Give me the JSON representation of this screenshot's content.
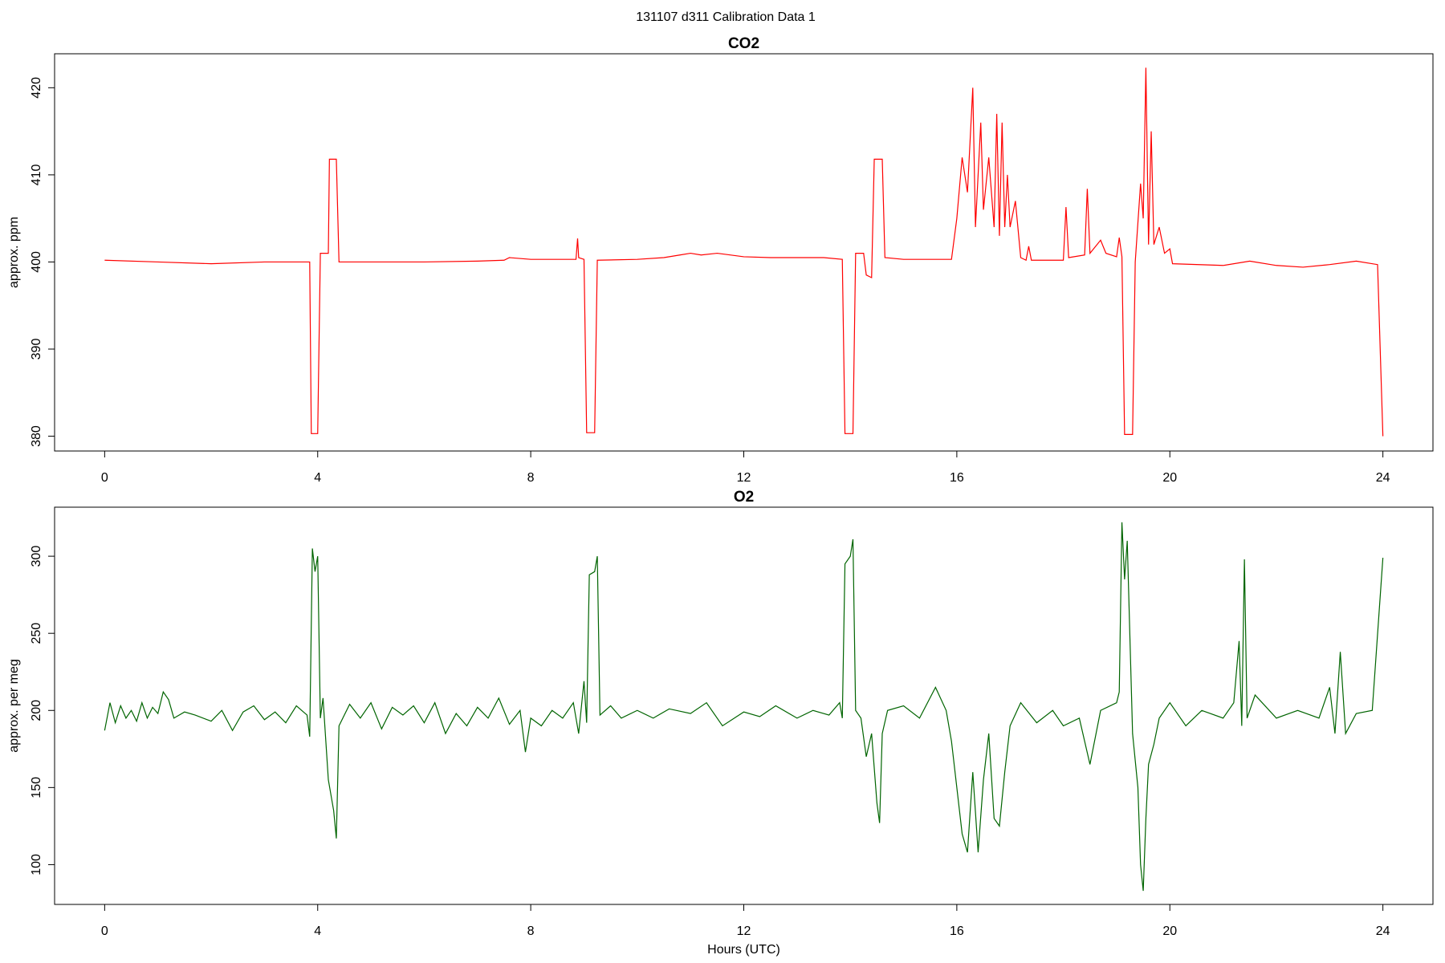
{
  "title": "131107   d311   Calibration Data 1",
  "chart_data": [
    {
      "type": "line",
      "title": "CO2",
      "ylabel": "approx. ppm",
      "color": "#ff0000",
      "xlim": [
        -0.94,
        24.94
      ],
      "ylim": [
        378.3,
        423.9
      ],
      "xticks": [
        0,
        4,
        8,
        12,
        16,
        20,
        24
      ],
      "yticks": [
        380,
        390,
        400,
        410,
        420
      ],
      "x": [
        0,
        1,
        2,
        3,
        3.85,
        3.88,
        4.0,
        4.05,
        4.2,
        4.22,
        4.35,
        4.4,
        5,
        6,
        7,
        7.5,
        7.6,
        8,
        8.85,
        8.88,
        8.9,
        9.0,
        9.05,
        9.2,
        9.25,
        10,
        10.5,
        10.8,
        11,
        11.2,
        11.5,
        12,
        12.5,
        13,
        13.5,
        13.85,
        13.9,
        14.05,
        14.1,
        14.25,
        14.3,
        14.4,
        14.45,
        14.6,
        14.65,
        15,
        15.5,
        15.9,
        16.0,
        16.1,
        16.2,
        16.3,
        16.35,
        16.45,
        16.5,
        16.6,
        16.7,
        16.75,
        16.8,
        16.85,
        16.9,
        16.95,
        17.0,
        17.1,
        17.2,
        17.3,
        17.35,
        17.4,
        18,
        18.05,
        18.1,
        18.4,
        18.45,
        18.5,
        18.7,
        18.8,
        19.0,
        19.05,
        19.1,
        19.15,
        19.3,
        19.35,
        19.45,
        19.5,
        19.55,
        19.6,
        19.65,
        19.7,
        19.8,
        19.9,
        20,
        20.05,
        21,
        21.5,
        22,
        22.5,
        23,
        23.5,
        23.9,
        24
      ],
      "values": [
        400.2,
        400.0,
        399.8,
        400.0,
        400.0,
        380.3,
        380.3,
        401,
        401,
        411.8,
        411.8,
        400,
        400,
        400,
        400.1,
        400.2,
        400.5,
        400.3,
        400.3,
        402.7,
        400.5,
        400.3,
        380.4,
        380.4,
        400.2,
        400.3,
        400.5,
        400.8,
        401,
        400.8,
        401,
        400.6,
        400.5,
        400.5,
        400.5,
        400.3,
        380.3,
        380.3,
        401,
        401,
        398.5,
        398.2,
        411.8,
        411.8,
        400.5,
        400.3,
        400.3,
        400.3,
        405,
        412,
        408,
        420,
        404,
        416,
        406,
        412,
        404,
        417,
        403,
        416,
        404,
        410,
        404,
        407,
        400.5,
        400.2,
        401.8,
        400.2,
        400.2,
        406.3,
        400.5,
        400.8,
        408.4,
        401,
        402.5,
        401,
        400.6,
        402.8,
        400.6,
        380.2,
        380.2,
        400,
        409,
        405,
        422.3,
        402,
        415,
        402,
        404,
        401,
        401.5,
        399.8,
        399.6,
        400.1,
        399.6,
        399.4,
        399.7,
        400.1,
        399.7,
        380
      ]
    },
    {
      "type": "line",
      "title": "O2",
      "ylabel": "approx. per meg",
      "xlabel": "Hours (UTC)",
      "color": "#006400",
      "xlim": [
        -0.94,
        24.94
      ],
      "ylim": [
        74.2,
        331.8
      ],
      "xticks": [
        0,
        4,
        8,
        12,
        16,
        20,
        24
      ],
      "yticks": [
        100,
        150,
        200,
        250,
        300
      ],
      "x": [
        0,
        0.1,
        0.2,
        0.3,
        0.4,
        0.5,
        0.6,
        0.7,
        0.8,
        0.9,
        1.0,
        1.1,
        1.2,
        1.3,
        1.5,
        1.7,
        2.0,
        2.2,
        2.4,
        2.6,
        2.8,
        3.0,
        3.2,
        3.4,
        3.6,
        3.8,
        3.85,
        3.9,
        3.95,
        4.0,
        4.05,
        4.1,
        4.2,
        4.3,
        4.35,
        4.4,
        4.6,
        4.8,
        5.0,
        5.2,
        5.4,
        5.6,
        5.8,
        6.0,
        6.2,
        6.4,
        6.6,
        6.8,
        7.0,
        7.2,
        7.4,
        7.6,
        7.8,
        7.9,
        8.0,
        8.2,
        8.4,
        8.6,
        8.8,
        8.9,
        9.0,
        9.05,
        9.1,
        9.2,
        9.25,
        9.3,
        9.5,
        9.7,
        10,
        10.3,
        10.6,
        11,
        11.3,
        11.6,
        12,
        12.3,
        12.6,
        13,
        13.3,
        13.6,
        13.8,
        13.85,
        13.9,
        14.0,
        14.05,
        14.1,
        14.2,
        14.3,
        14.4,
        14.5,
        14.55,
        14.6,
        14.7,
        15.0,
        15.3,
        15.6,
        15.8,
        15.9,
        16.0,
        16.1,
        16.2,
        16.3,
        16.4,
        16.5,
        16.6,
        16.7,
        16.8,
        16.9,
        17.0,
        17.2,
        17.5,
        17.8,
        18.0,
        18.3,
        18.5,
        18.7,
        19.0,
        19.05,
        19.1,
        19.15,
        19.2,
        19.3,
        19.4,
        19.45,
        19.5,
        19.55,
        19.6,
        19.7,
        19.8,
        20.0,
        20.3,
        20.6,
        21.0,
        21.2,
        21.3,
        21.35,
        21.4,
        21.45,
        21.6,
        22.0,
        22.4,
        22.8,
        23.0,
        23.1,
        23.2,
        23.3,
        23.5,
        23.8,
        24
      ],
      "values": [
        187,
        205,
        192,
        203,
        195,
        200,
        193,
        205,
        195,
        202,
        198,
        212,
        207,
        195,
        199,
        197,
        193,
        200,
        187,
        199,
        203,
        194,
        199,
        192,
        203,
        197,
        183,
        305,
        290,
        300,
        195,
        208,
        155,
        135,
        117,
        190,
        204,
        195,
        205,
        188,
        202,
        197,
        203,
        192,
        205,
        185,
        198,
        190,
        202,
        195,
        208,
        191,
        200,
        173,
        195,
        190,
        200,
        195,
        205,
        185,
        219,
        192,
        288,
        290,
        300,
        197,
        203,
        195,
        200,
        195,
        201,
        198,
        205,
        190,
        199,
        196,
        203,
        195,
        200,
        197,
        205,
        195,
        295,
        300,
        311,
        200,
        195,
        170,
        185,
        140,
        127,
        185,
        200,
        203,
        195,
        215,
        200,
        180,
        150,
        120,
        108,
        160,
        108,
        155,
        185,
        130,
        125,
        160,
        190,
        205,
        192,
        200,
        190,
        195,
        165,
        200,
        205,
        212,
        322,
        285,
        310,
        185,
        150,
        100,
        83,
        130,
        165,
        178,
        195,
        205,
        190,
        200,
        195,
        205,
        245,
        190,
        298,
        195,
        210,
        195,
        200,
        195,
        215,
        185,
        238,
        185,
        198,
        200,
        299
      ]
    }
  ]
}
